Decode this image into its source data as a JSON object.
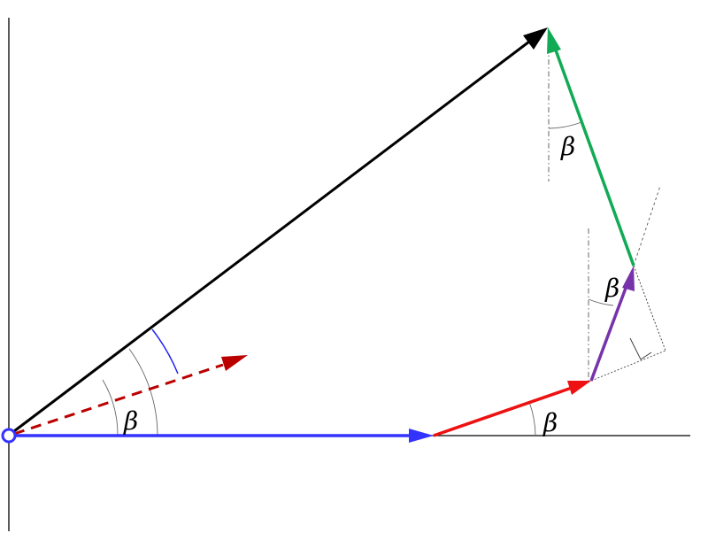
{
  "diagram": {
    "angle_symbol": "β",
    "colors": {
      "axis": "#000000",
      "blue_vector": "#3333ff",
      "black_vector": "#000000",
      "red_vector": "#ee1111",
      "red_dashed": "#bb0000",
      "green_vector": "#11aa55",
      "purple_vector": "#7733aa",
      "guide": "#555555",
      "angle_arc_blue": "#2222ee",
      "origin_marker": "#3333ff"
    },
    "labels": [
      {
        "id": "beta-origin",
        "text": "β"
      },
      {
        "id": "beta-red",
        "text": "β"
      },
      {
        "id": "beta-purple",
        "text": "β"
      },
      {
        "id": "beta-green",
        "text": "β"
      }
    ]
  }
}
